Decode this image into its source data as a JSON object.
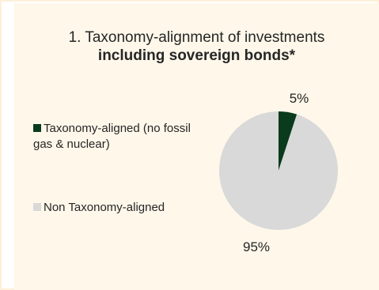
{
  "chart_data": {
    "type": "pie",
    "title": "1. Taxonomy-alignment of investments",
    "subtitle": "including sovereign bonds*",
    "slices": [
      {
        "label": "Taxonomy-aligned (no fossil gas & nuclear)",
        "value": 5,
        "display": "5%",
        "color": "#0a3b1c"
      },
      {
        "label": "Non Taxonomy-aligned",
        "value": 95,
        "display": "95%",
        "color": "#d9d9d9"
      }
    ],
    "legend_position": "left"
  },
  "colors": {
    "background": "#fef7ea",
    "border": "#fdf0d8",
    "text": "#262626"
  }
}
